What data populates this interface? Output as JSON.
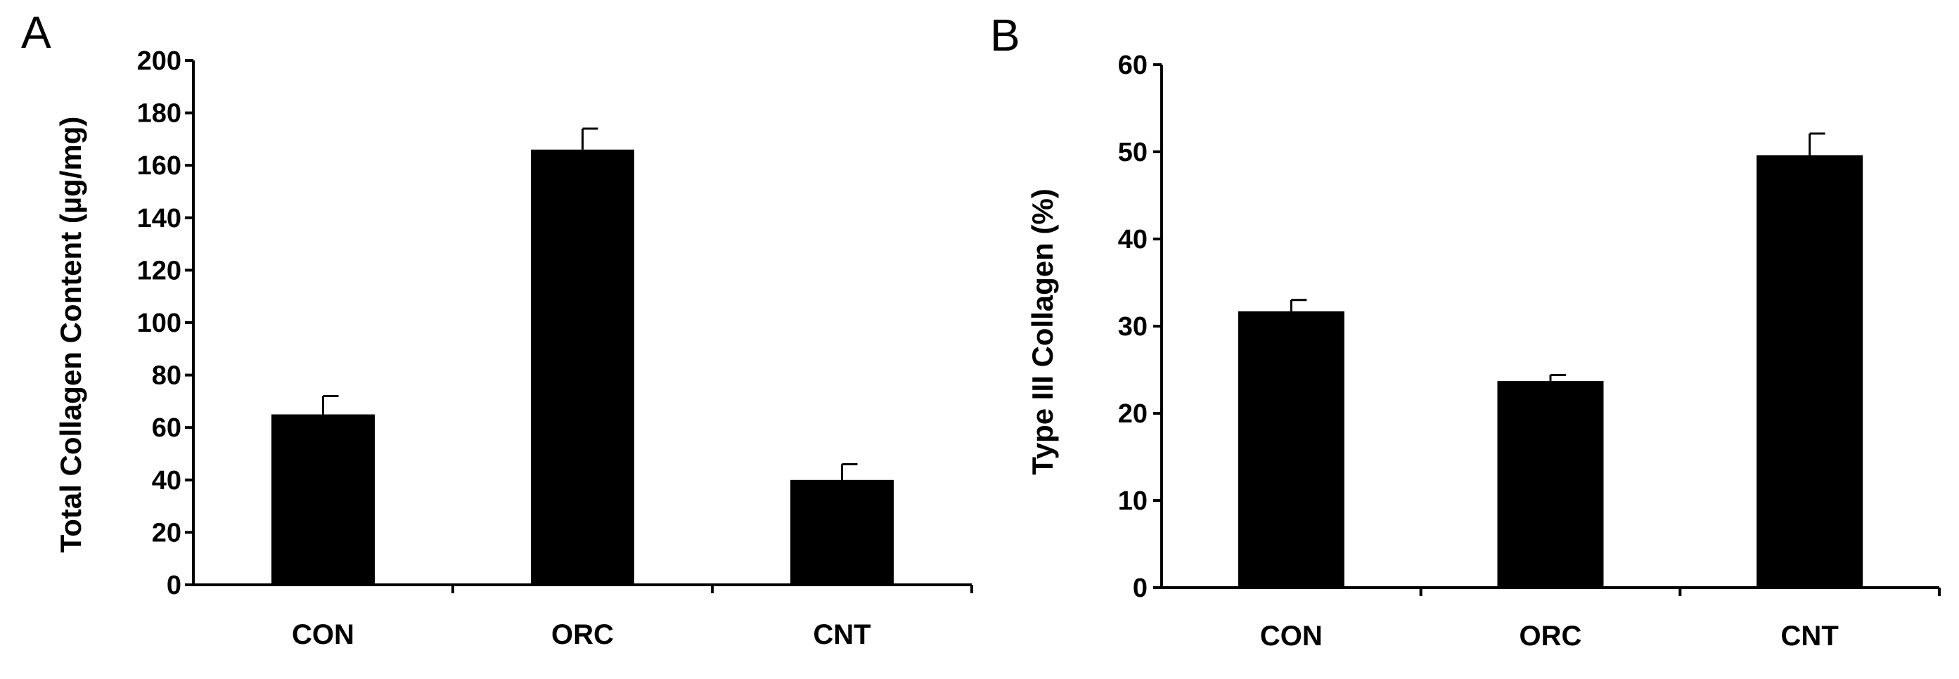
{
  "chart_data": [
    {
      "panel_label": "A",
      "type": "bar",
      "categories": [
        "CON",
        "ORC",
        "CNT"
      ],
      "values": [
        65,
        166,
        40
      ],
      "errors": [
        7,
        8,
        6
      ],
      "xlabel": "",
      "ylabel": "Total Collagen Content (µg/mg)",
      "ylim": [
        0,
        200
      ],
      "yticks": [
        0,
        20,
        40,
        60,
        80,
        100,
        120,
        140,
        160,
        180,
        200
      ],
      "bar_color": "#000000",
      "grid": false,
      "legend": "none"
    },
    {
      "panel_label": "B",
      "type": "bar",
      "categories": [
        "CON",
        "ORC",
        "CNT"
      ],
      "values": [
        31.7,
        23.7,
        49.6
      ],
      "errors": [
        1.3,
        0.7,
        2.5
      ],
      "xlabel": "",
      "ylabel": "Type III Collagen (%)",
      "ylim": [
        0,
        60
      ],
      "yticks": [
        0,
        10,
        20,
        30,
        40,
        50,
        60
      ],
      "bar_color": "#000000",
      "grid": false,
      "legend": "none"
    }
  ]
}
